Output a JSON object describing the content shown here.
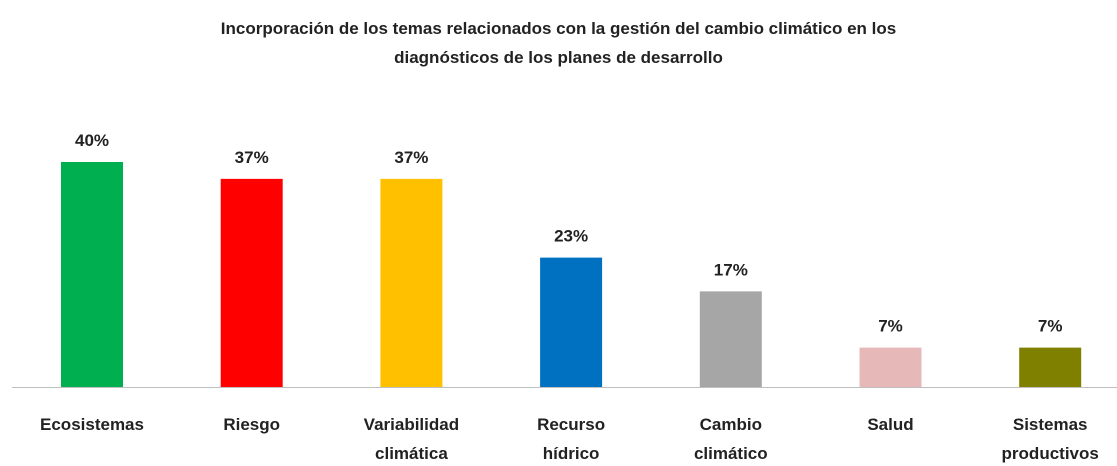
{
  "chart_data": {
    "type": "bar",
    "title": "Incorporación de los temas relacionados con la gestión del cambio climático en los diagnósticos de los planes de desarrollo",
    "categories": [
      "Ecosistemas",
      "Riesgo",
      "Variabilidad climática",
      "Recurso hídrico",
      "Cambio climático",
      "Salud",
      "Sistemas productivos"
    ],
    "values": [
      40,
      37,
      37,
      23,
      17,
      7,
      7
    ],
    "value_labels": [
      "40%",
      "37%",
      "37%",
      "23%",
      "17%",
      "7%",
      "7%"
    ],
    "colors": [
      "#00b050",
      "#ff0000",
      "#ffc000",
      "#0070c0",
      "#a6a6a6",
      "#e6b9b8",
      "#7f7f00"
    ]
  }
}
